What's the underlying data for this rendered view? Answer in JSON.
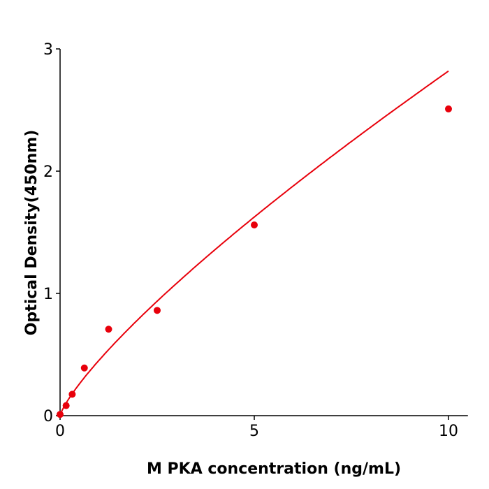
{
  "chart_data": {
    "type": "scatter",
    "xlabel": "M  PKA concentration (ng/mL)",
    "ylabel": "Optical Density(450nm)",
    "xlim": [
      0,
      10.5
    ],
    "ylim": [
      0,
      3
    ],
    "xticks": [
      "0",
      "5",
      "10"
    ],
    "yticks": [
      "0",
      "1",
      "2",
      "3"
    ],
    "grid": false,
    "series": [
      {
        "x": [
          0,
          0.156,
          0.3125,
          0.625,
          1.25,
          2.5,
          5,
          10
        ],
        "y": [
          0.01,
          0.082,
          0.175,
          0.39,
          0.707,
          0.861,
          1.56,
          2.509
        ],
        "color": "#e8000b",
        "fit_curve": true
      }
    ]
  }
}
